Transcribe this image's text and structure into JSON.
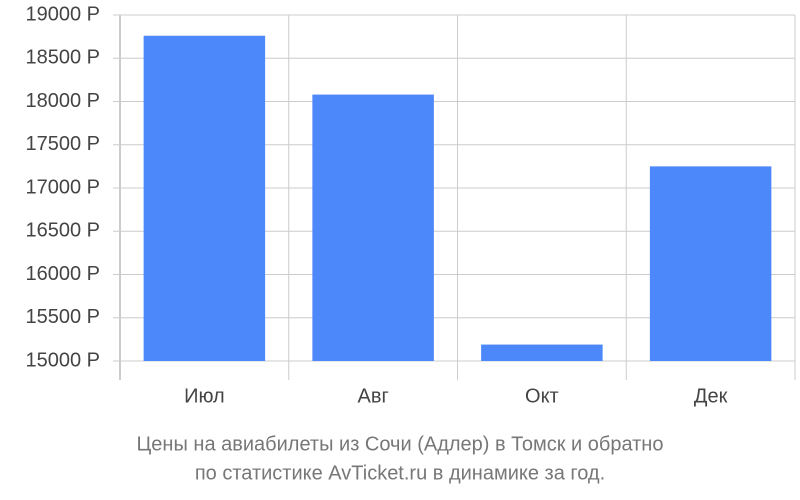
{
  "chart_data": {
    "type": "bar",
    "title": [
      "Цены на авиабилеты из Сочи (Адлер) в Томск и обратно",
      "по статистике AvTicket.ru в динамике за год."
    ],
    "categories": [
      "Июл",
      "Авг",
      "Окт",
      "Дек"
    ],
    "values": [
      18760,
      18080,
      15190,
      17250
    ],
    "color": "#4d88fb",
    "ylim": [
      15000,
      19000
    ],
    "yticks": [
      {
        "value": 15000,
        "label": "15000 Р"
      },
      {
        "value": 15500,
        "label": "15500 Р"
      },
      {
        "value": 16000,
        "label": "16000 Р"
      },
      {
        "value": 16500,
        "label": "16500 Р"
      },
      {
        "value": 17000,
        "label": "17000 Р"
      },
      {
        "value": 17500,
        "label": "17500 Р"
      },
      {
        "value": 18000,
        "label": "18000 Р"
      },
      {
        "value": 18500,
        "label": "18500 Р"
      },
      {
        "value": 19000,
        "label": "19000 Р"
      }
    ],
    "grid": true
  }
}
